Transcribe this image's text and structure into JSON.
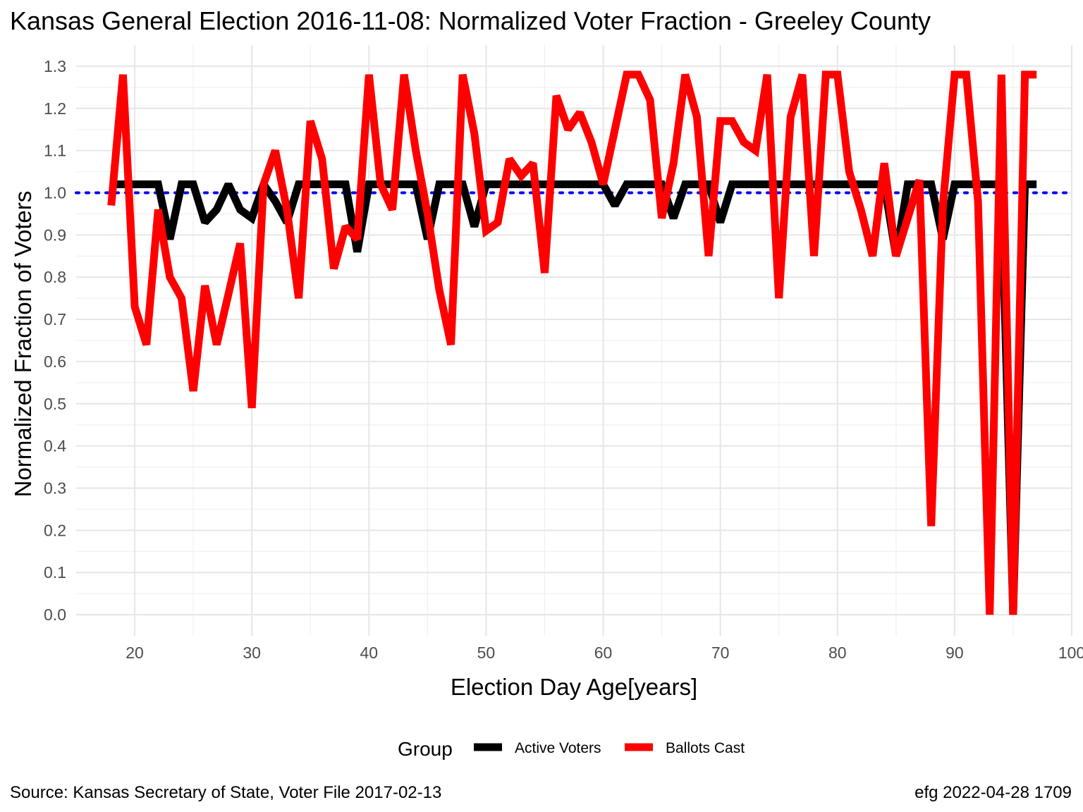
{
  "chart_data": {
    "type": "line",
    "title": "Kansas General Election 2016-11-08:  Normalized Voter Fraction - Greeley County",
    "xlabel": "Election Day Age[years]",
    "ylabel": "Normalized Fraction of Voters",
    "xlim": [
      15,
      100
    ],
    "ylim": [
      -0.05,
      1.35
    ],
    "x_ticks": [
      20,
      30,
      40,
      50,
      60,
      70,
      80,
      90,
      100
    ],
    "x_tick_labels": [
      "20",
      "30",
      "40",
      "50",
      "60",
      "70",
      "80",
      "90",
      "100"
    ],
    "y_ticks": [
      0.0,
      0.1,
      0.2,
      0.3,
      0.4,
      0.5,
      0.6,
      0.7,
      0.8,
      0.9,
      1.0,
      1.1,
      1.2,
      1.3
    ],
    "y_tick_labels": [
      "0.0",
      "0.1",
      "0.2",
      "0.3",
      "0.4",
      "0.5",
      "0.6",
      "0.7",
      "0.8",
      "0.9",
      "1.0",
      "1.1",
      "1.2",
      "1.3"
    ],
    "grid": true,
    "reference_line": {
      "y": 1.0,
      "color": "#0000ff",
      "style": "dotted"
    },
    "legend": {
      "title": "Group",
      "position": "bottom"
    },
    "series": [
      {
        "name": "Active Voters",
        "color": "#000000",
        "x": [
          18,
          19,
          20,
          21,
          22,
          23,
          24,
          25,
          26,
          27,
          28,
          29,
          30,
          31,
          32,
          33,
          34,
          35,
          36,
          37,
          38,
          39,
          40,
          41,
          42,
          43,
          44,
          45,
          46,
          47,
          48,
          49,
          50,
          51,
          52,
          53,
          54,
          55,
          56,
          57,
          58,
          59,
          60,
          61,
          62,
          63,
          64,
          65,
          66,
          67,
          68,
          69,
          70,
          71,
          72,
          73,
          74,
          75,
          76,
          77,
          78,
          79,
          80,
          81,
          82,
          83,
          84,
          85,
          86,
          87,
          88,
          89,
          90,
          91,
          92,
          93,
          94,
          95,
          96,
          97
        ],
        "values": [
          1.02,
          1.02,
          1.02,
          1.02,
          1.02,
          0.89,
          1.02,
          1.02,
          0.93,
          0.96,
          1.02,
          0.96,
          0.94,
          1.02,
          0.98,
          0.93,
          1.02,
          1.02,
          1.02,
          1.02,
          1.02,
          0.86,
          1.02,
          1.02,
          1.02,
          1.02,
          1.02,
          0.89,
          1.02,
          1.02,
          1.02,
          0.92,
          1.02,
          1.02,
          1.02,
          1.02,
          1.02,
          1.02,
          1.02,
          1.02,
          1.02,
          1.02,
          1.02,
          0.97,
          1.02,
          1.02,
          1.02,
          1.02,
          0.94,
          1.02,
          1.02,
          1.02,
          0.93,
          1.02,
          1.02,
          1.02,
          1.02,
          1.02,
          1.02,
          1.02,
          1.02,
          1.02,
          1.02,
          1.02,
          1.02,
          1.02,
          1.02,
          0.85,
          1.02,
          1.02,
          1.02,
          0.89,
          1.02,
          1.02,
          1.02,
          1.02,
          1.02,
          0.0,
          1.02,
          1.02
        ]
      },
      {
        "name": "Ballots Cast",
        "color": "#ff0000",
        "x": [
          18,
          19,
          20,
          21,
          22,
          23,
          24,
          25,
          26,
          27,
          28,
          29,
          30,
          31,
          32,
          33,
          34,
          35,
          36,
          37,
          38,
          39,
          40,
          41,
          42,
          43,
          44,
          45,
          46,
          47,
          48,
          49,
          50,
          51,
          52,
          53,
          54,
          55,
          56,
          57,
          58,
          59,
          60,
          61,
          62,
          63,
          64,
          65,
          66,
          67,
          68,
          69,
          70,
          71,
          72,
          73,
          74,
          75,
          76,
          77,
          78,
          79,
          80,
          81,
          82,
          83,
          84,
          85,
          86,
          87,
          88,
          89,
          90,
          91,
          92,
          93,
          94,
          95,
          96,
          97
        ],
        "values": [
          0.97,
          1.28,
          0.73,
          0.64,
          0.96,
          0.8,
          0.75,
          0.53,
          0.78,
          0.64,
          0.76,
          0.88,
          0.49,
          1.02,
          1.1,
          0.96,
          0.75,
          1.17,
          1.08,
          0.82,
          0.92,
          0.89,
          1.28,
          1.02,
          0.96,
          1.28,
          1.1,
          0.95,
          0.77,
          0.64,
          1.28,
          1.14,
          0.91,
          0.93,
          1.08,
          1.04,
          1.07,
          0.81,
          1.23,
          1.15,
          1.19,
          1.12,
          1.02,
          1.15,
          1.28,
          1.28,
          1.22,
          0.94,
          1.07,
          1.28,
          1.18,
          0.85,
          1.17,
          1.17,
          1.12,
          1.1,
          1.28,
          0.75,
          1.18,
          1.28,
          0.85,
          1.28,
          1.28,
          1.05,
          0.96,
          0.85,
          1.07,
          0.85,
          0.94,
          1.03,
          0.21,
          0.97,
          1.28,
          1.28,
          0.98,
          0.0,
          1.28,
          0.0,
          1.28,
          1.28
        ]
      }
    ]
  },
  "footer": {
    "source": "Source:  Kansas Secretary of State, Voter File  2017-02-13",
    "credit": "efg 2022-04-28 1709"
  }
}
